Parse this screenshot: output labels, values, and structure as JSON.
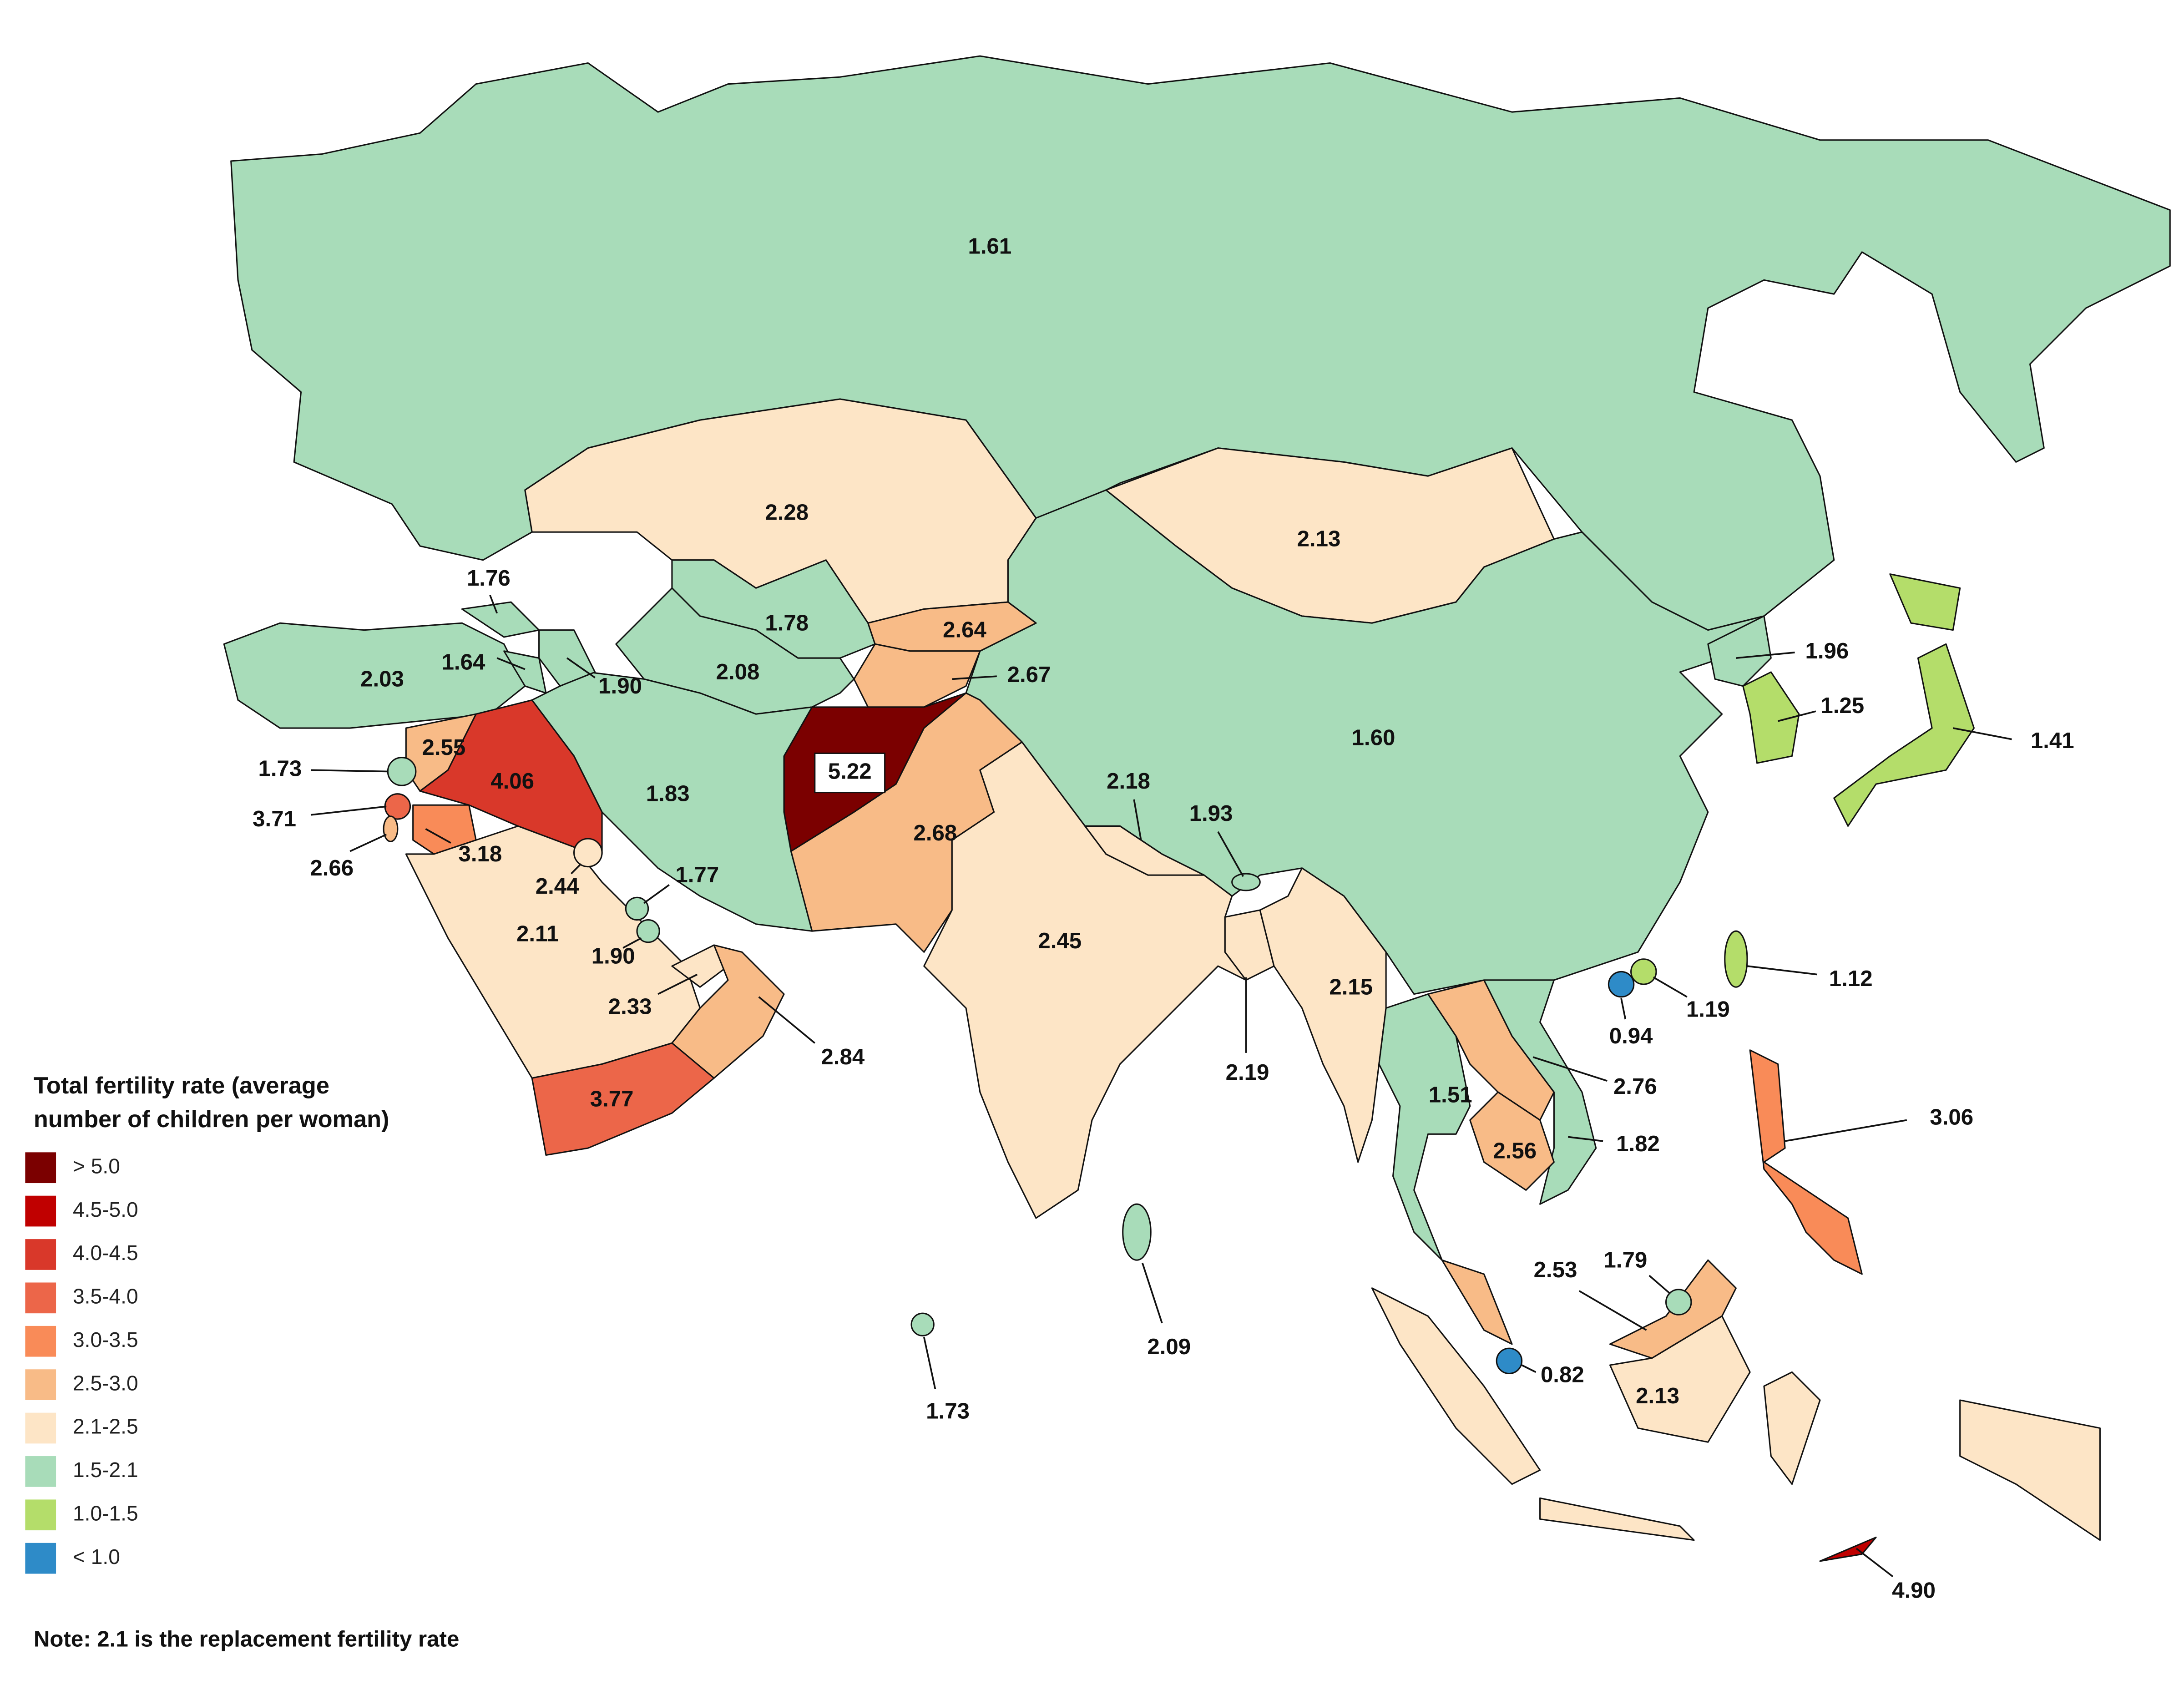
{
  "legend": {
    "title": [
      "Total fertility rate (average",
      "number of children per woman)"
    ],
    "items": [
      {
        "label": "> 5.0",
        "color": "#7b0000"
      },
      {
        "label": "4.5-5.0",
        "color": "#c00000"
      },
      {
        "label": "4.0-4.5",
        "color": "#d9382a"
      },
      {
        "label": "3.5-4.0",
        "color": "#ec6649"
      },
      {
        "label": "3.0-3.5",
        "color": "#f98b58"
      },
      {
        "label": "2.5-3.0",
        "color": "#f8bb87"
      },
      {
        "label": "2.1-2.5",
        "color": "#fde5c6"
      },
      {
        "label": "1.5-2.1",
        "color": "#a8dcb9"
      },
      {
        "label": "1.0-1.5",
        "color": "#b4dd6a"
      },
      {
        "label": "< 1.0",
        "color": "#2e8bc8"
      }
    ]
  },
  "note": "Note: 2.1 is the replacement fertility rate",
  "map": {
    "values": [
      1.61,
      2.28,
      2.13,
      1.6,
      1.78,
      2.08,
      2.64,
      2.67,
      5.22,
      2.68,
      2.45,
      2.18,
      1.93,
      2.19,
      2.15,
      1.51,
      2.76,
      1.82,
      2.56,
      1.83,
      2.03,
      1.76,
      1.64,
      1.9,
      2.55,
      4.06,
      3.18,
      3.71,
      1.73,
      2.66,
      2.11,
      2.44,
      1.77,
      1.9,
      2.33,
      2.84,
      3.77,
      2.09,
      1.73,
      1.96,
      1.25,
      1.41,
      1.12,
      0.94,
      1.19,
      3.06,
      2.53,
      1.79,
      0.82,
      2.13,
      4.9
    ],
    "value_labels": [
      "1.61",
      "2.28",
      "2.13",
      "1.60",
      "1.78",
      "2.08",
      "2.64",
      "2.67",
      "5.22",
      "2.68",
      "2.45",
      "2.18",
      "1.93",
      "2.19",
      "2.15",
      "1.51",
      "2.76",
      "1.82",
      "2.56",
      "1.83",
      "2.03",
      "1.76",
      "1.64",
      "1.90",
      "2.55",
      "4.06",
      "3.18",
      "3.71",
      "1.73",
      "2.66",
      "2.11",
      "2.44",
      "1.77",
      "1.90",
      "2.33",
      "2.84",
      "3.77",
      "2.09",
      "1.73",
      "1.96",
      "1.25",
      "1.41",
      "1.12",
      "0.94",
      "1.19",
      "3.06",
      "2.53",
      "1.79",
      "0.82",
      "2.13",
      "4.90"
    ],
    "colors": [
      "#a8dcb9",
      "#fde5c6",
      "#fde5c6",
      "#a8dcb9",
      "#a8dcb9",
      "#a8dcb9",
      "#f8bb87",
      "#f8bb87",
      "#7b0000",
      "#f8bb87",
      "#fde5c6",
      "#fde5c6",
      "#a8dcb9",
      "#fde5c6",
      "#fde5c6",
      "#a8dcb9",
      "#f8bb87",
      "#a8dcb9",
      "#f8bb87",
      "#a8dcb9",
      "#a8dcb9",
      "#a8dcb9",
      "#a8dcb9",
      "#a8dcb9",
      "#f8bb87",
      "#d9382a",
      "#f98b58",
      "#ec6649",
      "#a8dcb9",
      "#f8bb87",
      "#fde5c6",
      "#fde5c6",
      "#a8dcb9",
      "#a8dcb9",
      "#fde5c6",
      "#f8bb87",
      "#ec6649",
      "#a8dcb9",
      "#a8dcb9",
      "#a8dcb9",
      "#b4dd6a",
      "#b4dd6a",
      "#b4dd6a",
      "#2e8bc8",
      "#b4dd6a",
      "#f98b58",
      "#f8bb87",
      "#a8dcb9",
      "#2e8bc8",
      "#fde5c6",
      "#c00000"
    ]
  }
}
